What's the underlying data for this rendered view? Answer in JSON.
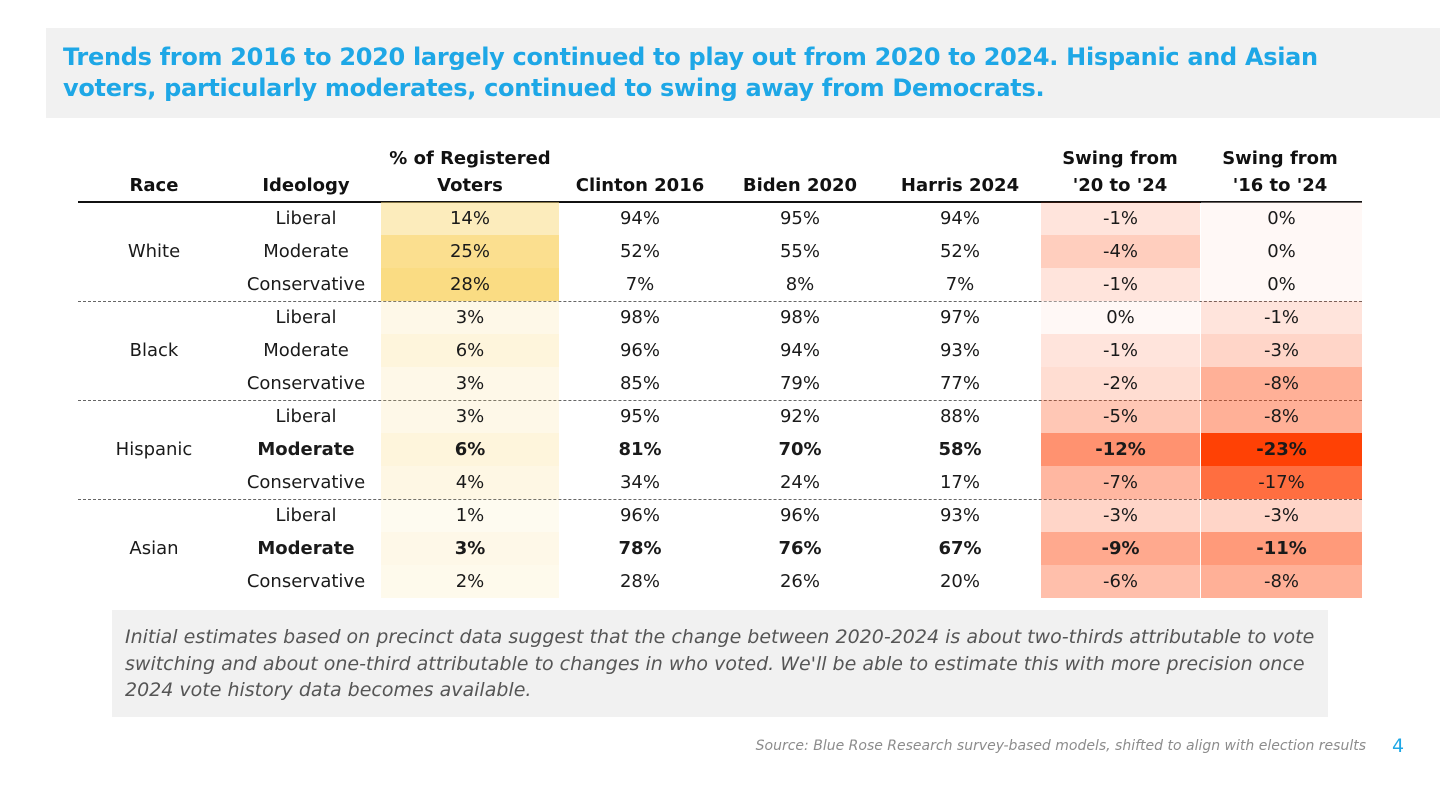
{
  "title": "Trends from 2016 to 2020 largely continued to play out from 2020 to 2024. Hispanic and Asian voters, particularly moderates, continued to swing away from Democrats.",
  "headers": {
    "race": "Race",
    "ideology": "Ideology",
    "share": "% of Registered Voters",
    "clinton": "Clinton 2016",
    "biden": "Biden 2020",
    "harris": "Harris 2024",
    "swing20": "Swing from '20 to '24",
    "swing16": "Swing from '16 to '24"
  },
  "groups": [
    {
      "race": "White",
      "rows": [
        {
          "ideology": "Liberal",
          "share": "14%",
          "clinton": "94%",
          "biden": "95%",
          "harris": "94%",
          "swing20": "-1%",
          "swing16": "0%",
          "bold": false
        },
        {
          "ideology": "Moderate",
          "share": "25%",
          "clinton": "52%",
          "biden": "55%",
          "harris": "52%",
          "swing20": "-4%",
          "swing16": "0%",
          "bold": false
        },
        {
          "ideology": "Conservative",
          "share": "28%",
          "clinton": "7%",
          "biden": "8%",
          "harris": "7%",
          "swing20": "-1%",
          "swing16": "0%",
          "bold": false
        }
      ]
    },
    {
      "race": "Black",
      "rows": [
        {
          "ideology": "Liberal",
          "share": "3%",
          "clinton": "98%",
          "biden": "98%",
          "harris": "97%",
          "swing20": "0%",
          "swing16": "-1%",
          "bold": false
        },
        {
          "ideology": "Moderate",
          "share": "6%",
          "clinton": "96%",
          "biden": "94%",
          "harris": "93%",
          "swing20": "-1%",
          "swing16": "-3%",
          "bold": false
        },
        {
          "ideology": "Conservative",
          "share": "3%",
          "clinton": "85%",
          "biden": "79%",
          "harris": "77%",
          "swing20": "-2%",
          "swing16": "-8%",
          "bold": false
        }
      ]
    },
    {
      "race": "Hispanic",
      "rows": [
        {
          "ideology": "Liberal",
          "share": "3%",
          "clinton": "95%",
          "biden": "92%",
          "harris": "88%",
          "swing20": "-5%",
          "swing16": "-8%",
          "bold": false
        },
        {
          "ideology": "Moderate",
          "share": "6%",
          "clinton": "81%",
          "biden": "70%",
          "harris": "58%",
          "swing20": "-12%",
          "swing16": "-23%",
          "bold": true
        },
        {
          "ideology": "Conservative",
          "share": "4%",
          "clinton": "34%",
          "biden": "24%",
          "harris": "17%",
          "swing20": "-7%",
          "swing16": "-17%",
          "bold": false
        }
      ]
    },
    {
      "race": "Asian",
      "rows": [
        {
          "ideology": "Liberal",
          "share": "1%",
          "clinton": "96%",
          "biden": "96%",
          "harris": "93%",
          "swing20": "-3%",
          "swing16": "-3%",
          "bold": false
        },
        {
          "ideology": "Moderate",
          "share": "3%",
          "clinton": "78%",
          "biden": "76%",
          "harris": "67%",
          "swing20": "-9%",
          "swing16": "-11%",
          "bold": true
        },
        {
          "ideology": "Conservative",
          "share": "2%",
          "clinton": "28%",
          "biden": "26%",
          "harris": "20%",
          "swing20": "-6%",
          "swing16": "-8%",
          "bold": false
        }
      ]
    }
  ],
  "note": "Initial estimates based on precinct data suggest that the change between 2020-2024 is about two-thirds attributable to vote switching and about one-third attributable to changes in who voted. We'll be able to estimate this with more precision once 2024 vote history data becomes available.",
  "source": "Source: Blue Rose Research survey-based models, shifted to align with election results",
  "page_number": "4",
  "colors": {
    "title": "#1ea7e6",
    "share_heat": "#fad97a",
    "swing_heat": "#ff3d00"
  }
}
